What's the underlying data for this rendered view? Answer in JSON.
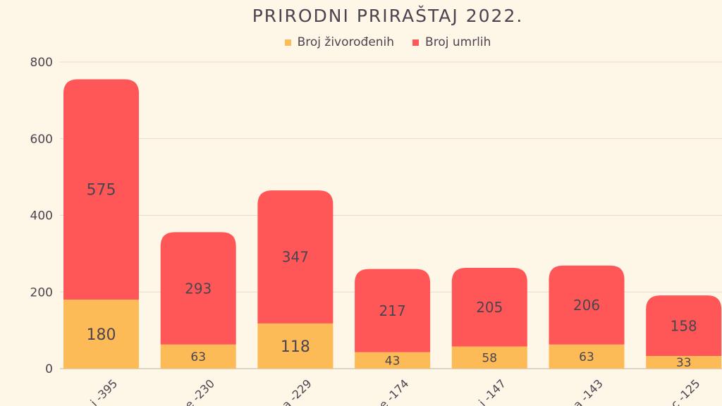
{
  "chart_data": {
    "type": "bar",
    "stacked": true,
    "title": "PRIRODNI PRIRAŠTAJ 2022.",
    "categories": [
      "i -395",
      "e -230",
      "a -229",
      "e -174",
      "i -147",
      "a -143",
      "c -125"
    ],
    "series": [
      {
        "name": "Broj živorođenih",
        "color": "#FDBB57",
        "values": [
          180,
          63,
          118,
          43,
          58,
          63,
          33
        ]
      },
      {
        "name": "Broj umrlih",
        "color": "#FF5757",
        "values": [
          575,
          293,
          347,
          217,
          205,
          206,
          158
        ]
      }
    ],
    "ylim": [
      0,
      800
    ],
    "yticks": [
      0,
      200,
      400,
      600,
      800
    ],
    "grid": true,
    "legend": "top"
  }
}
